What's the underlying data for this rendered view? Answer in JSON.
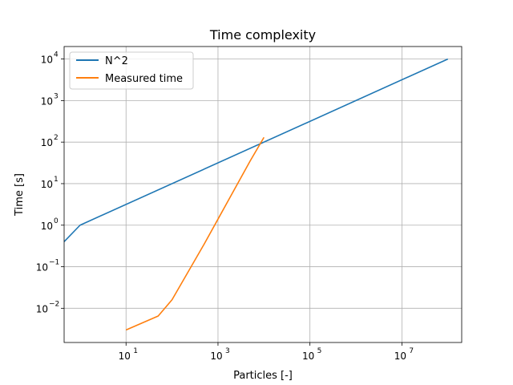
{
  "chart_data": {
    "type": "line",
    "title": "Time complexity",
    "xlabel": "Particles [-]",
    "ylabel": "Time [s]",
    "xscale": "log",
    "yscale": "log",
    "xlim": [
      0.45,
      200000000
    ],
    "ylim": [
      0.0015,
      20000
    ],
    "grid": true,
    "legend_position": "top-left",
    "xticks": [
      {
        "value": 10,
        "label": "10",
        "exp": "1"
      },
      {
        "value": 1000,
        "label": "10",
        "exp": "3"
      },
      {
        "value": 100000,
        "label": "10",
        "exp": "5"
      },
      {
        "value": 10000000,
        "label": "10",
        "exp": "7"
      }
    ],
    "yticks": [
      {
        "value": 0.01,
        "label": "10",
        "exp": "−2"
      },
      {
        "value": 0.1,
        "label": "10",
        "exp": "−1"
      },
      {
        "value": 1,
        "label": "10",
        "exp": "0"
      },
      {
        "value": 10,
        "label": "10",
        "exp": "1"
      },
      {
        "value": 100,
        "label": "10",
        "exp": "2"
      },
      {
        "value": 1000,
        "label": "10",
        "exp": "3"
      },
      {
        "value": 10000,
        "label": "10",
        "exp": "4"
      }
    ],
    "series": [
      {
        "name": "N^2",
        "color": "#1f77b4",
        "x": [
          0.45,
          1,
          100000000
        ],
        "y": [
          0.4,
          1,
          10000
        ]
      },
      {
        "name": "Measured time",
        "color": "#ff7f0e",
        "x": [
          10,
          50,
          100,
          500,
          1000,
          5000,
          10000
        ],
        "y": [
          0.003,
          0.0065,
          0.016,
          0.35,
          1.4,
          35,
          130
        ]
      }
    ]
  }
}
